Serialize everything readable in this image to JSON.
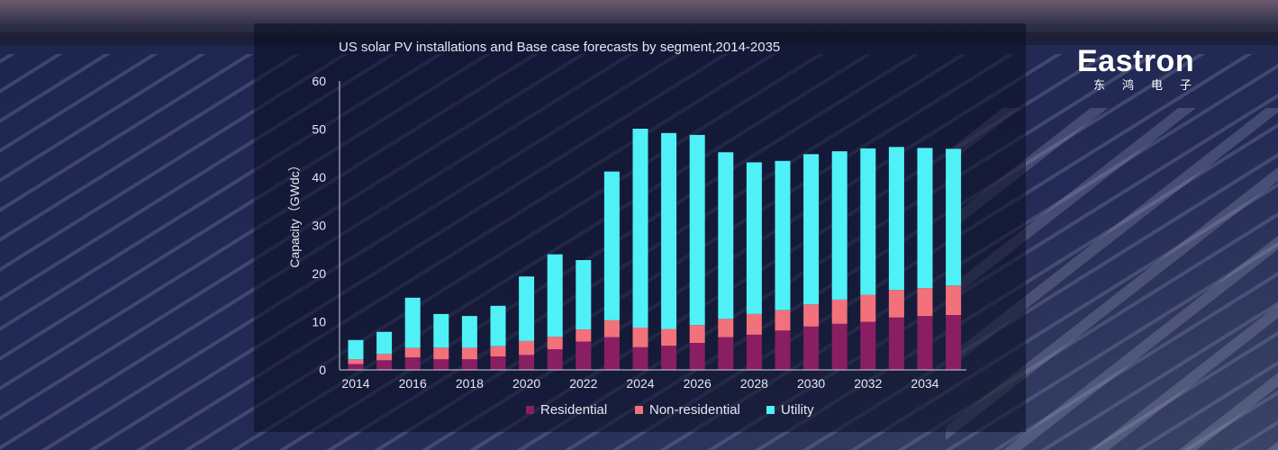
{
  "colors": {
    "residential": "#8a1e63",
    "non_residential": "#f2717a",
    "utility": "#4ff1f6",
    "axis": "#d0d4e0",
    "text": "#e6e8f0"
  },
  "brand": {
    "name": "Eastron",
    "subtitle": "东鸿电子"
  },
  "chart_data": {
    "type": "bar",
    "stacked": true,
    "title": "US solar PV installations and Base case forecasts by segment,2014-2035",
    "ylabel": "Capacity（GWdc）",
    "ylim": [
      0,
      60
    ],
    "yticks": [
      "0",
      "10",
      "20",
      "30",
      "40",
      "50",
      "60"
    ],
    "xtick_labels": [
      "2014",
      "2016",
      "2018",
      "2020",
      "2022",
      "2024",
      "2026",
      "2028",
      "2030",
      "2032",
      "2034"
    ],
    "categories": [
      "2014",
      "2015",
      "2016",
      "2017",
      "2018",
      "2019",
      "2020",
      "2021",
      "2022",
      "2023",
      "2024",
      "2025",
      "2026",
      "2027",
      "2028",
      "2029",
      "2030",
      "2031",
      "2032",
      "2033",
      "2034",
      "2035"
    ],
    "series": [
      {
        "name": "Residential",
        "color_key": "residential",
        "values": [
          1.2,
          2.0,
          2.6,
          2.2,
          2.2,
          2.8,
          3.1,
          4.3,
          5.9,
          6.8,
          4.7,
          5.0,
          5.6,
          6.8,
          7.3,
          8.2,
          9.0,
          9.6,
          10.0,
          10.9,
          11.2,
          11.4
        ]
      },
      {
        "name": "Non-residential",
        "color_key": "non_residential",
        "values": [
          1.0,
          1.3,
          2.0,
          2.4,
          2.4,
          2.1,
          2.9,
          2.6,
          2.5,
          3.5,
          4.1,
          3.5,
          3.7,
          3.8,
          4.3,
          4.2,
          4.6,
          5.0,
          5.6,
          5.7,
          5.8,
          6.1
        ]
      },
      {
        "name": "Utility",
        "color_key": "utility",
        "values": [
          4.0,
          4.6,
          10.4,
          7.0,
          6.6,
          8.4,
          13.4,
          17.1,
          14.4,
          30.9,
          41.3,
          40.7,
          39.5,
          34.6,
          31.5,
          31.0,
          31.2,
          30.8,
          30.4,
          29.7,
          29.1,
          28.4
        ]
      }
    ],
    "legend_position": "bottom",
    "grid": false
  }
}
